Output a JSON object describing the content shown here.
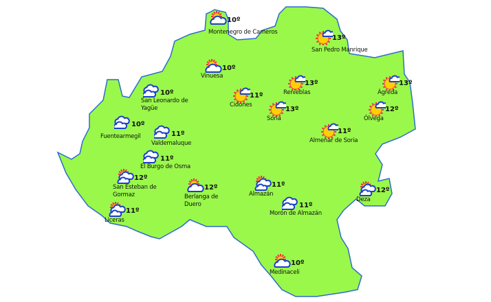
{
  "map": {
    "region_fill": "#99f84a",
    "border_color": "#2d6ad0",
    "stations": [
      {
        "id": "montenegro",
        "name": "Montenegro de Cameros",
        "temp": "10º",
        "icon": "partly-cloudy-icon"
      },
      {
        "id": "san-pedro",
        "name": "San Pedro Manrique",
        "temp": "13º",
        "icon": "sun-small-cloud-icon"
      },
      {
        "id": "vinuesa",
        "name": "Vinuesa",
        "temp": "10º",
        "icon": "partly-cloudy-icon"
      },
      {
        "id": "san-leonardo",
        "name": "San Leonardo de Yagüe",
        "temp": "10º",
        "icon": "cloudy-icon"
      },
      {
        "id": "renieblas",
        "name": "Renieblas",
        "temp": "13º",
        "icon": "sun-small-cloud-icon"
      },
      {
        "id": "agreda",
        "name": "Ágreda",
        "temp": "13º",
        "icon": "sun-small-cloud-icon"
      },
      {
        "id": "cidones",
        "name": "Cidones",
        "temp": "11º",
        "icon": "sun-small-cloud-icon"
      },
      {
        "id": "soria",
        "name": "Soria",
        "temp": "13º",
        "icon": "sun-small-cloud-icon"
      },
      {
        "id": "olvega",
        "name": "Ólvega",
        "temp": "12º",
        "icon": "sun-small-cloud-icon"
      },
      {
        "id": "fuentearmegil",
        "name": "Fuentearmegil",
        "temp": "10º",
        "icon": "cloudy-icon"
      },
      {
        "id": "valdemaluque",
        "name": "Valdemaluque",
        "temp": "11º",
        "icon": "cloudy-icon"
      },
      {
        "id": "almenar",
        "name": "Almenar de Soria",
        "temp": "11º",
        "icon": "sun-small-cloud-icon"
      },
      {
        "id": "el-burgo",
        "name": "El Burgo de Osma",
        "temp": "11º",
        "icon": "cloudy-icon"
      },
      {
        "id": "san-esteban",
        "name": "San Esteban de Gormaz",
        "temp": "12º",
        "icon": "sun-behind-clouds-icon"
      },
      {
        "id": "berlanga",
        "name": "Berlanga de Duero",
        "temp": "12º",
        "icon": "partly-cloudy-icon"
      },
      {
        "id": "almazan",
        "name": "Almazán",
        "temp": "11º",
        "icon": "sun-behind-clouds-icon"
      },
      {
        "id": "deza",
        "name": "Deza",
        "temp": "12º",
        "icon": "sun-behind-clouds-icon"
      },
      {
        "id": "moron",
        "name": "Morón de Almazán",
        "temp": "11º",
        "icon": "cloudy-icon"
      },
      {
        "id": "liceras",
        "name": "Liceras",
        "temp": "11º",
        "icon": "sun-behind-clouds-icon"
      },
      {
        "id": "medinaceli",
        "name": "Medinaceli",
        "temp": "10º",
        "icon": "partly-cloudy-icon"
      }
    ]
  }
}
